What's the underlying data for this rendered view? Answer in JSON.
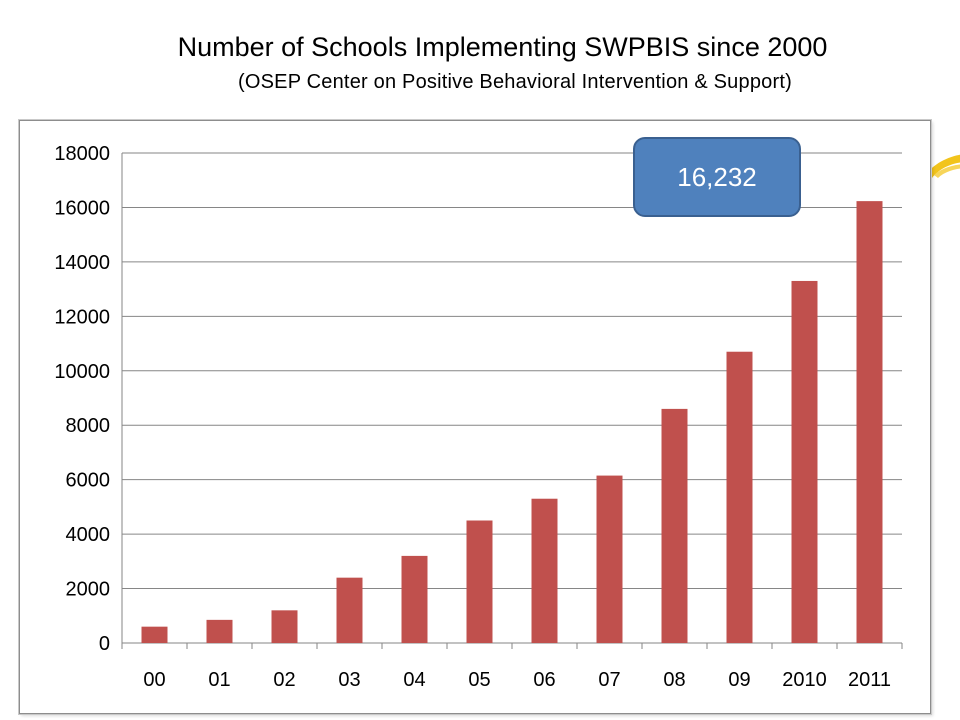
{
  "title": "Number of Schools Implementing SWPBIS since 2000",
  "subtitle": "(OSEP Center on Positive Behavioral Intervention & Support)",
  "callout": {
    "text": "16,232"
  },
  "decoration": {
    "icon": "yellow-swoosh-icon",
    "color": "#f2c41c"
  },
  "colors": {
    "bar": "#c0504d",
    "callout": "#4f81bd",
    "grid": "#868686"
  },
  "chart_data": {
    "type": "bar",
    "categories": [
      "00",
      "01",
      "02",
      "03",
      "04",
      "05",
      "06",
      "07",
      "08",
      "09",
      "2010",
      "2011"
    ],
    "values": [
      600,
      850,
      1200,
      2400,
      3200,
      4500,
      5300,
      6150,
      8600,
      10700,
      13300,
      16232
    ],
    "ylim": [
      0,
      18000
    ],
    "yticks": [
      0,
      2000,
      4000,
      6000,
      8000,
      10000,
      12000,
      14000,
      16000,
      18000
    ],
    "xlabel": "",
    "ylabel": "",
    "grid": true,
    "legend": "none"
  }
}
